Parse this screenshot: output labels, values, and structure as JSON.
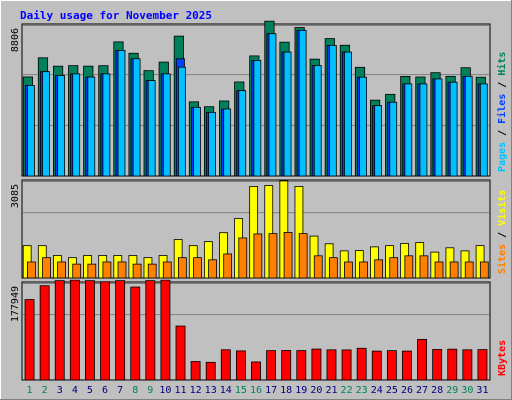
{
  "chart_data": {
    "type": "bar",
    "title": "Daily usage for November 2025",
    "days": [
      "1",
      "2",
      "3",
      "4",
      "5",
      "6",
      "7",
      "8",
      "9",
      "10",
      "11",
      "12",
      "13",
      "14",
      "15",
      "16",
      "17",
      "18",
      "19",
      "20",
      "21",
      "22",
      "23",
      "24",
      "25",
      "26",
      "27",
      "28",
      "29",
      "30",
      "31"
    ],
    "weekend_days": [
      1,
      2,
      8,
      9,
      15,
      16,
      22,
      23,
      29,
      30
    ],
    "panels": [
      {
        "id": "hits-files-pages",
        "ytick": "8806",
        "ymax": 8806,
        "series": [
          {
            "name": "Hits",
            "color": "#00805c",
            "values": [
              5917,
              7061,
              6561,
              6591,
              6561,
              6589,
              8011,
              7331,
              6291,
              6803,
              8354,
              4430,
              4138,
              4481,
              5616,
              7173,
              9401,
              7991,
              8870,
              6979,
              8206,
              7810,
              6491,
              4529,
              4878,
              5947,
              5911,
              6171,
              5953,
              6468,
              5899
            ]
          },
          {
            "name": "Files",
            "color": "#0040ff",
            "values": [
              5411,
              6230,
              6000,
              6100,
              5910,
              6100,
              7500,
              7000,
              5700,
              6100,
              7000,
              4100,
              3800,
              4000,
              5100,
              6900,
              8500,
              7400,
              8700,
              6600,
              7800,
              7400,
              5900,
              4200,
              4400,
              5500,
              5500,
              5800,
              5600,
              5950,
              5500
            ]
          },
          {
            "name": "Pages",
            "color": "#00c0ff",
            "values": [
              5411,
              6230,
              6000,
              6100,
              5910,
              6100,
              7500,
              7000,
              5700,
              6100,
              6500,
              4100,
              3800,
              4000,
              5100,
              6900,
              8500,
              7400,
              8700,
              6600,
              7800,
              7400,
              5900,
              4200,
              4400,
              5500,
              5500,
              5800,
              5600,
              5950,
              5500
            ]
          }
        ]
      },
      {
        "id": "visits-sites",
        "ytick": "3085",
        "ymax": 3085,
        "series": [
          {
            "name": "Visits",
            "color": "#ffff00",
            "values": [
              1050,
              1050,
              730,
              660,
              730,
              730,
              730,
              730,
              660,
              730,
              1250,
              1050,
              1180,
              1470,
              1930,
              2970,
              3000,
              3150,
              2970,
              1360,
              1110,
              880,
              890,
              1010,
              1050,
              1120,
              1150,
              840,
              980,
              880,
              1050
            ]
          },
          {
            "name": "Sites",
            "color": "#ff8000",
            "values": [
              520,
              660,
              520,
              450,
              450,
              520,
              520,
              450,
              450,
              520,
              660,
              660,
              590,
              780,
              1300,
              1430,
              1440,
              1480,
              1440,
              720,
              660,
              520,
              520,
              590,
              660,
              720,
              720,
              520,
              520,
              520,
              520
            ]
          }
        ]
      },
      {
        "id": "kbytes",
        "ytick": "177949",
        "ymax": 177949,
        "series": [
          {
            "name": "KBytes",
            "color": "#ff0000",
            "values": [
              150600,
              176500,
              186000,
              192500,
              186000,
              184000,
              186000,
              174000,
              186000,
              192700,
              101000,
              34600,
              33100,
              56600,
              54500,
              33800,
              55000,
              55300,
              55100,
              57900,
              56500,
              56300,
              59400,
              54100,
              55000,
              54100,
              76100,
              57100,
              57700,
              56500,
              56900
            ]
          }
        ]
      }
    ],
    "legends": [
      {
        "panel": "hits-files-pages",
        "items": [
          {
            "text": "Pages",
            "color": "#00c0ff"
          },
          {
            "text": " / ",
            "color": "#000000"
          },
          {
            "text": "Files",
            "color": "#0040ff"
          },
          {
            "text": " / ",
            "color": "#000000"
          },
          {
            "text": "Hits",
            "color": "#00805c"
          }
        ]
      },
      {
        "panel": "visits-sites",
        "items": [
          {
            "text": "Sites",
            "color": "#ff8000"
          },
          {
            "text": " / ",
            "color": "#000000"
          },
          {
            "text": "Visits",
            "color": "#ffff00"
          }
        ]
      },
      {
        "panel": "kbytes",
        "items": [
          {
            "text": "KBytes",
            "color": "#ff0000"
          }
        ]
      }
    ],
    "colors": {
      "background": "#c0c0c0",
      "title": "#0000ff",
      "weekday_label": "#000080",
      "weekend_label": "#00805c",
      "grid": "#808080"
    }
  }
}
